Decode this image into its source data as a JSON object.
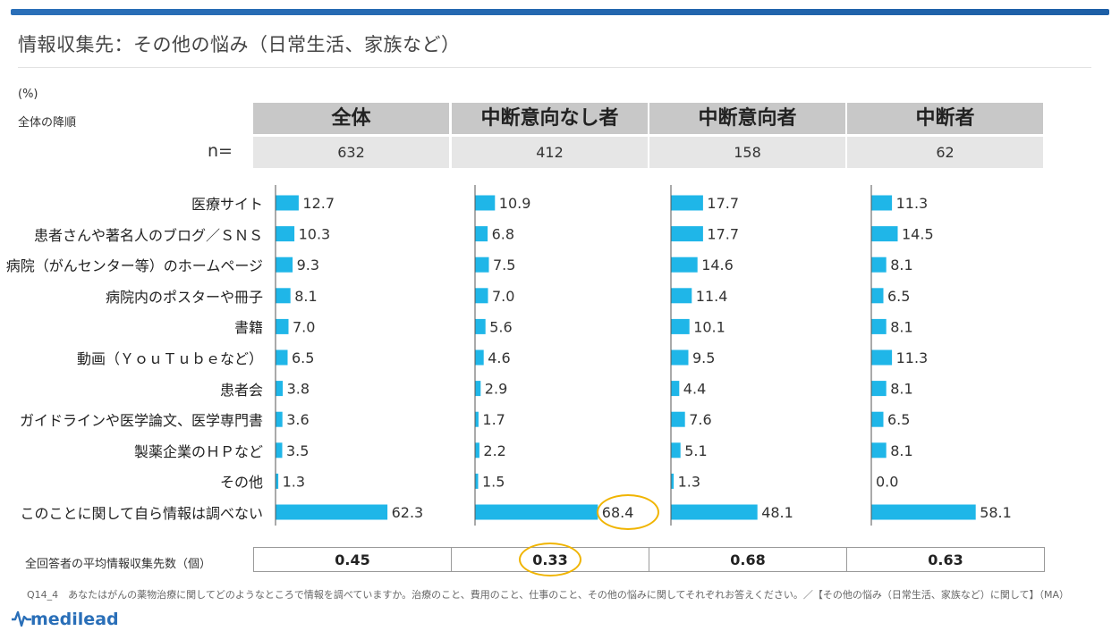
{
  "title": "情報収集先：その他の悩み（日常生活、家族など）",
  "unit": "(%)",
  "sort_note": "全体の降順",
  "n_label": "n=",
  "groups": [
    {
      "name": "全体",
      "n": "632",
      "avg": "0.45"
    },
    {
      "name": "中断意向なし者",
      "n": "412",
      "avg": "0.33"
    },
    {
      "name": "中断意向者",
      "n": "158",
      "avg": "0.68"
    },
    {
      "name": "中断者",
      "n": "62",
      "avg": "0.63"
    }
  ],
  "avg_label": "全回答者の平均情報収集先数（個）",
  "footnote": "Q14_4　あなたはがんの薬物治療に関してどのようなところで情報を調べていますか。治療のこと、費用のこと、仕事のこと、その他の悩みに関してそれぞれお答えください。／【その他の悩み（日常生活、家族など）に関して】（MA）",
  "logo_text": "medilead",
  "bar_color": "#1fb6e8",
  "highlight_color": "#f0b400",
  "chart_data": {
    "type": "bar",
    "orientation": "horizontal",
    "categories": [
      "医療サイト",
      "患者さんや著名人のブログ／ＳＮＳ",
      "病院（がんセンター等）のホームページ",
      "病院内のポスターや冊子",
      "書籍",
      "動画（ＹｏｕＴｕｂｅなど）",
      "患者会",
      "ガイドラインや医学論文、医学専門書",
      "製薬企業のＨＰなど",
      "その他",
      "このことに関して自ら情報は調べない"
    ],
    "series": [
      {
        "name": "全体",
        "values": [
          12.7,
          10.3,
          9.3,
          8.1,
          7.0,
          6.5,
          3.8,
          3.6,
          3.5,
          1.3,
          62.3
        ]
      },
      {
        "name": "中断意向なし者",
        "values": [
          10.9,
          6.8,
          7.5,
          7.0,
          5.6,
          4.6,
          2.9,
          1.7,
          2.2,
          1.5,
          68.4
        ]
      },
      {
        "name": "中断意向者",
        "values": [
          17.7,
          17.7,
          14.6,
          11.4,
          10.1,
          9.5,
          4.4,
          7.6,
          5.1,
          1.3,
          48.1
        ]
      },
      {
        "name": "中断者",
        "values": [
          11.3,
          14.5,
          8.1,
          6.5,
          8.1,
          11.3,
          8.1,
          6.5,
          8.1,
          0.0,
          58.1
        ]
      }
    ],
    "value_labels": [
      [
        "12.7",
        "10.3",
        "9.3",
        "8.1",
        "7.0",
        "6.5",
        "3.8",
        "3.6",
        "3.5",
        "1.3",
        "62.3"
      ],
      [
        "10.9",
        "6.8",
        "7.5",
        "7.0",
        "5.6",
        "4.6",
        "2.9",
        "1.7",
        "2.2",
        "1.5",
        "68.4"
      ],
      [
        "17.7",
        "17.7",
        "14.6",
        "11.4",
        "10.1",
        "9.5",
        "4.4",
        "7.6",
        "5.1",
        "1.3",
        "48.1"
      ],
      [
        "11.3",
        "14.5",
        "8.1",
        "6.5",
        "8.1",
        "11.3",
        "8.1",
        "6.5",
        "8.1",
        "0.0",
        "58.1"
      ]
    ],
    "xlim": [
      0,
      100
    ],
    "grid": false,
    "highlighted": {
      "series": "中断意向なし者",
      "category": "このことに関して自ら情報は調べない"
    }
  }
}
